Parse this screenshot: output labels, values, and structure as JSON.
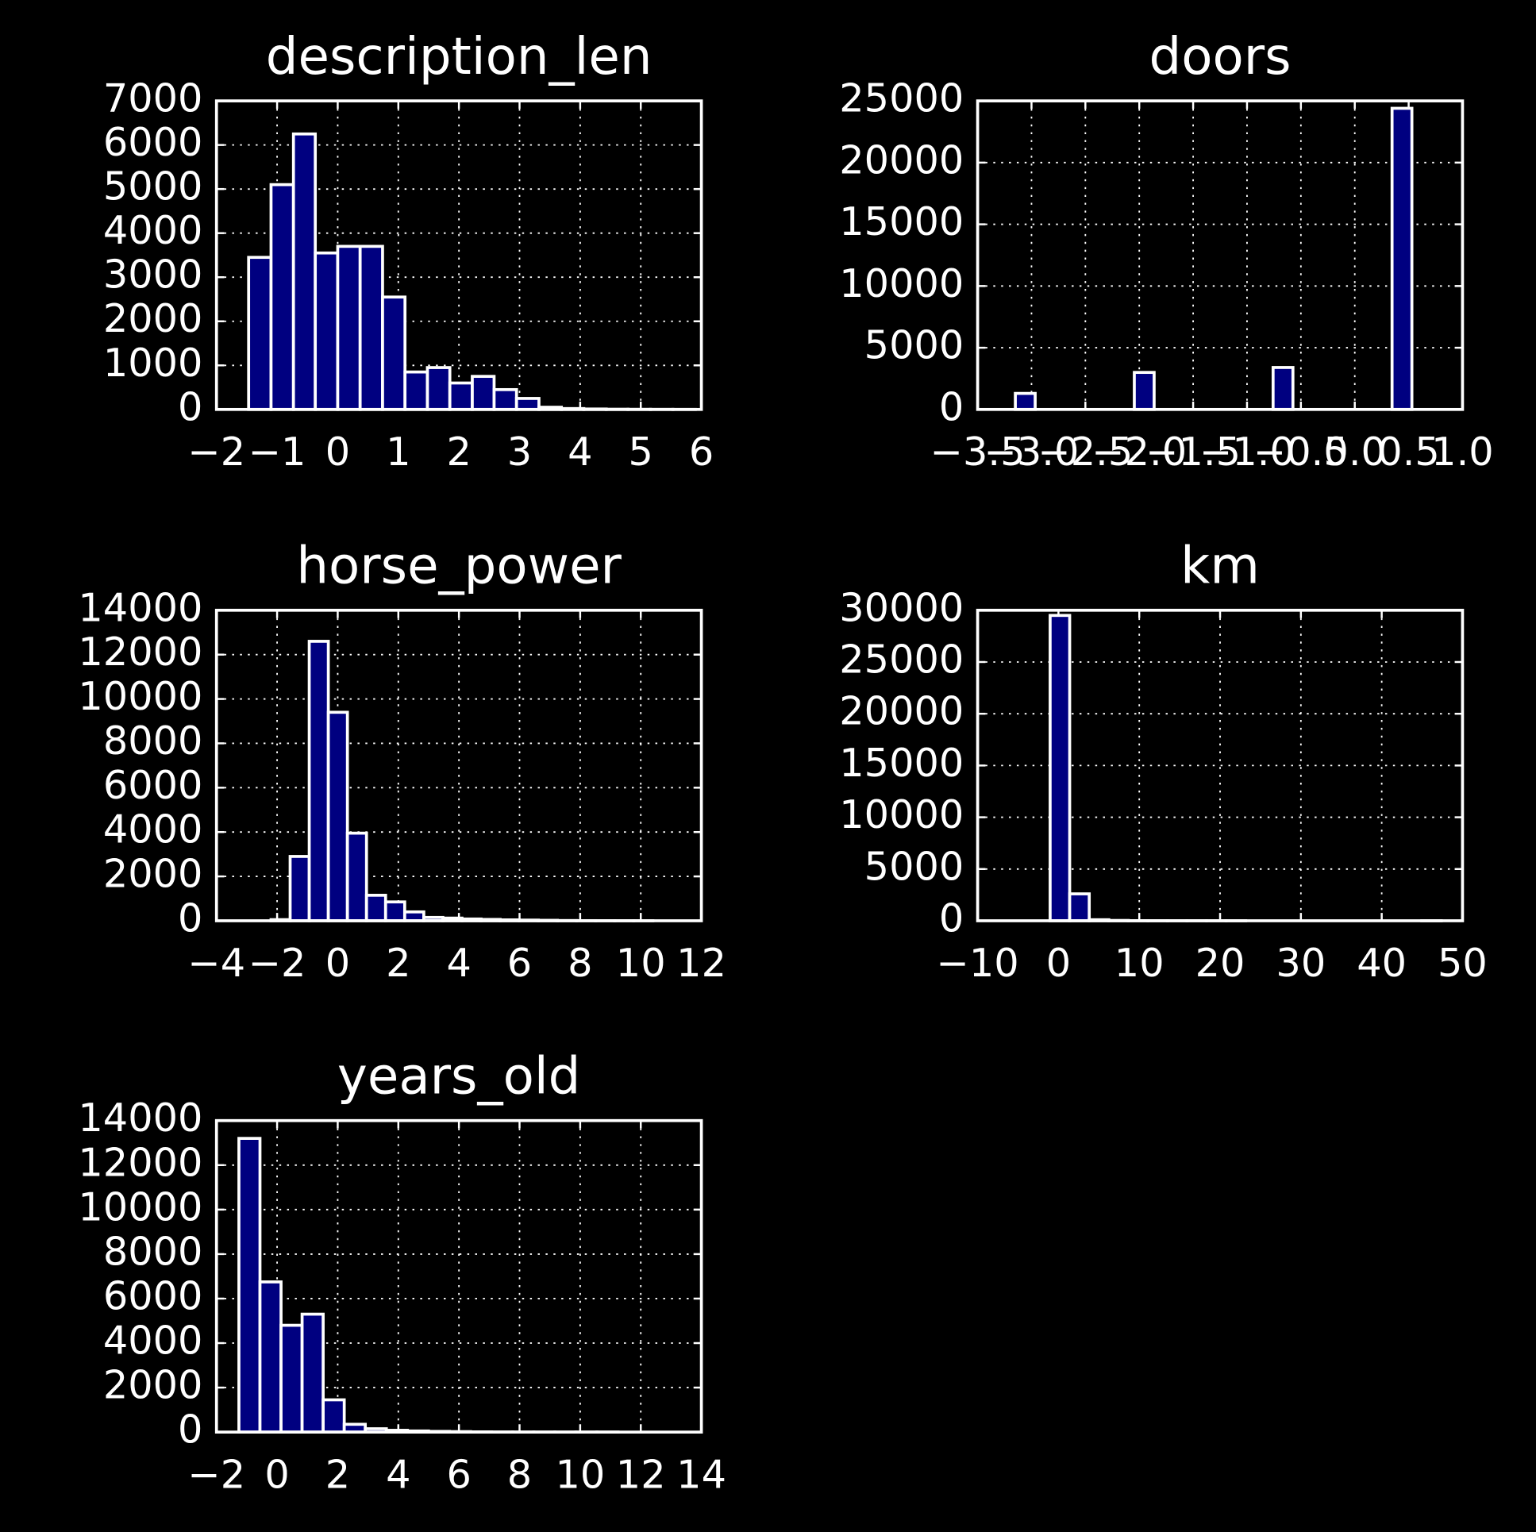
{
  "chart_data": [
    {
      "type": "histogram",
      "title": "description_len",
      "color": "#000080",
      "grid": true,
      "bins": [
        -1.47,
        -1.1,
        -0.73,
        -0.37,
        0.0,
        0.37,
        0.74,
        1.11,
        1.48,
        1.85,
        2.22,
        2.58,
        2.95,
        3.32,
        3.69,
        4.06,
        4.43,
        4.79,
        5.16,
        5.53,
        5.9
      ],
      "values": [
        3450,
        5100,
        6250,
        3550,
        3700,
        3700,
        2550,
        850,
        950,
        600,
        750,
        450,
        250,
        50,
        20,
        10,
        5,
        3,
        2,
        1
      ],
      "xlim": [
        -2,
        6
      ],
      "xticks": [
        {
          "value": -2,
          "label": "−2"
        },
        {
          "value": -1,
          "label": "−1"
        },
        0,
        1,
        2,
        3,
        4,
        5,
        6
      ],
      "ylim": [
        0,
        7000
      ],
      "yticks": [
        0,
        1000,
        2000,
        3000,
        4000,
        5000,
        6000,
        7000
      ]
    },
    {
      "type": "histogram",
      "title": "doors",
      "color": "#000080",
      "grid": true,
      "bins": [
        -3.15,
        -2.966,
        -2.782,
        -2.598,
        -2.414,
        -2.23,
        -2.046,
        -1.862,
        -1.678,
        -1.494,
        -1.31,
        -1.126,
        -0.942,
        -0.758,
        -0.574,
        -0.39,
        -0.206,
        -0.022,
        0.162,
        0.346,
        0.53
      ],
      "values": [
        1300,
        0,
        0,
        0,
        0,
        0,
        3000,
        0,
        0,
        0,
        0,
        0,
        0,
        3400,
        0,
        0,
        0,
        0,
        0,
        24400
      ],
      "xlim": [
        -3.5,
        1.0
      ],
      "xticks": [
        {
          "value": -3.5,
          "label": "−3.5"
        },
        {
          "value": -3.0,
          "label": "−3.0"
        },
        {
          "value": -2.5,
          "label": "−2.5"
        },
        {
          "value": -2.0,
          "label": "−2.0"
        },
        {
          "value": -1.5,
          "label": "−1.5"
        },
        {
          "value": -1.0,
          "label": "−1.0"
        },
        {
          "value": -0.5,
          "label": "−0.5"
        },
        {
          "value": 0,
          "label": "0.0"
        },
        0.5,
        {
          "value": 1,
          "label": "1.0"
        }
      ],
      "ylim": [
        0,
        25000
      ],
      "yticks": [
        0,
        5000,
        10000,
        15000,
        20000,
        25000
      ]
    },
    {
      "type": "histogram",
      "title": "horse_power",
      "color": "#000080",
      "grid": true,
      "bins": [
        -2.2,
        -1.57,
        -0.94,
        -0.31,
        0.32,
        0.95,
        1.58,
        2.21,
        2.84,
        3.47,
        4.1,
        4.73,
        5.36,
        5.99,
        6.62,
        7.25,
        7.88,
        8.51,
        9.14,
        9.77,
        10.4
      ],
      "values": [
        50,
        2900,
        12600,
        9400,
        3950,
        1150,
        850,
        400,
        150,
        120,
        80,
        60,
        40,
        30,
        20,
        10,
        5,
        3,
        2,
        1
      ],
      "xlim": [
        -4,
        12
      ],
      "xticks": [
        {
          "value": -4,
          "label": "−4"
        },
        {
          "value": -2,
          "label": "−2"
        },
        0,
        2,
        4,
        6,
        8,
        10,
        12
      ],
      "ylim": [
        0,
        14000
      ],
      "yticks": [
        0,
        2000,
        4000,
        6000,
        8000,
        10000,
        12000,
        14000
      ]
    },
    {
      "type": "histogram",
      "title": "km",
      "color": "#000080",
      "grid": true,
      "bins": [
        -1.03,
        1.39,
        3.81,
        6.23,
        8.65,
        11.07,
        13.49,
        15.91,
        18.33,
        20.75,
        23.17,
        25.59,
        28.01,
        30.43,
        32.85,
        35.27,
        37.69,
        40.11,
        42.53,
        44.95,
        47.37
      ],
      "values": [
        29500,
        2600,
        100,
        30,
        10,
        5,
        3,
        2,
        1,
        1,
        0,
        0,
        0,
        0,
        0,
        0,
        0,
        0,
        0,
        1
      ],
      "xlim": [
        -10,
        50
      ],
      "xticks": [
        {
          "value": -10,
          "label": "−10"
        },
        0,
        10,
        20,
        30,
        40,
        50
      ],
      "ylim": [
        0,
        30000
      ],
      "yticks": [
        0,
        5000,
        10000,
        15000,
        20000,
        25000,
        30000
      ]
    },
    {
      "type": "histogram",
      "title": "years_old",
      "color": "#000080",
      "grid": true,
      "bins": [
        -1.26,
        -0.565,
        0.13,
        0.825,
        1.52,
        2.215,
        2.91,
        3.605,
        4.3,
        4.995,
        5.69,
        6.385,
        7.08,
        7.775,
        8.47,
        9.165,
        9.86,
        10.555,
        11.25,
        11.945,
        12.64
      ],
      "values": [
        13200,
        6750,
        4800,
        5300,
        1450,
        350,
        150,
        80,
        50,
        30,
        20,
        10,
        5,
        3,
        2,
        1,
        1,
        1,
        0,
        0
      ],
      "xlim": [
        -2,
        14
      ],
      "xticks": [
        {
          "value": -2,
          "label": "−2"
        },
        0,
        2,
        4,
        6,
        8,
        10,
        12,
        14
      ],
      "ylim": [
        0,
        14000
      ],
      "yticks": [
        0,
        2000,
        4000,
        6000,
        8000,
        10000,
        12000,
        14000
      ]
    }
  ]
}
